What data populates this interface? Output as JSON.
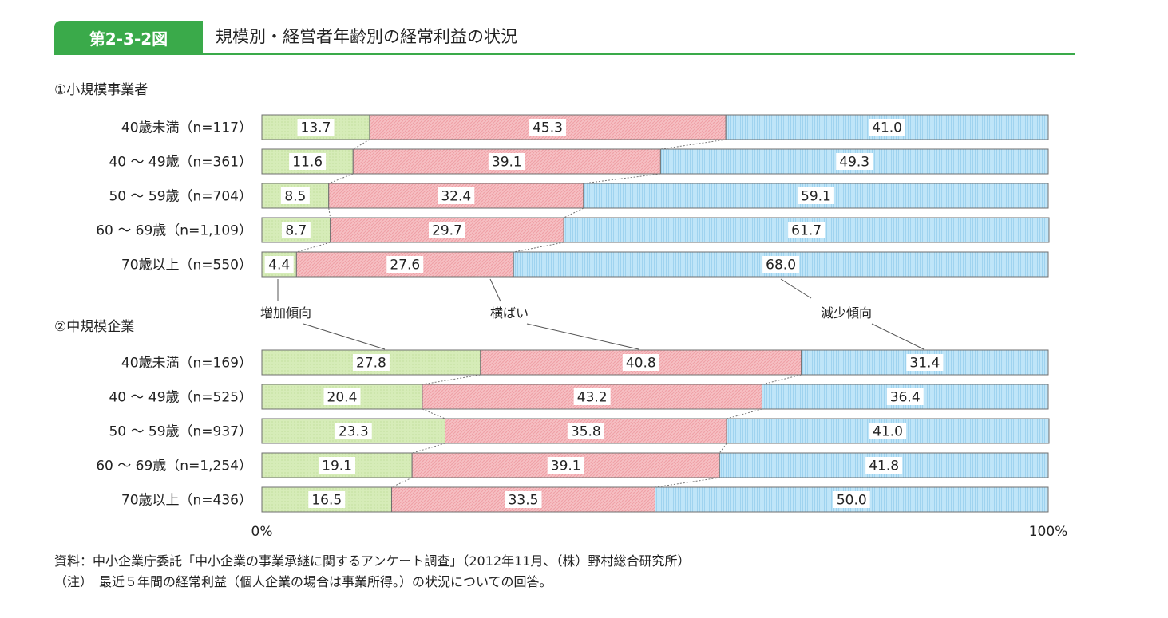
{
  "figure": {
    "badge": "第2-3-2図",
    "title": "規模別・経営者年齢別の経常利益の状況"
  },
  "chart_data": {
    "type": "bar",
    "stacked": true,
    "orientation": "horizontal",
    "xlim": [
      0,
      100
    ],
    "x_ticks": [
      "0%",
      "100%"
    ],
    "series_colors": [
      "#d4ebb5",
      "#f6b6ba",
      "#b7e0f5"
    ],
    "legend_labels": [
      "増加傾向",
      "横ばい",
      "減少傾向"
    ],
    "panels": [
      {
        "title": "①小規模事業者",
        "categories": [
          "40歳未満（n=117）",
          "40 ～ 49歳（n=361）",
          "50 ～ 59歳（n=704）",
          "60 ～ 69歳（n=1,109）",
          "70歳以上（n=550）"
        ],
        "series": [
          {
            "name": "増加傾向",
            "values": [
              13.7,
              11.6,
              8.5,
              8.7,
              4.4
            ]
          },
          {
            "name": "横ばい",
            "values": [
              45.3,
              39.1,
              32.4,
              29.7,
              27.6
            ]
          },
          {
            "name": "減少傾向",
            "values": [
              41.0,
              49.3,
              59.1,
              61.7,
              68.0
            ]
          }
        ]
      },
      {
        "title": "②中規模企業",
        "categories": [
          "40歳未満（n=169）",
          "40 ～ 49歳（n=525）",
          "50 ～ 59歳（n=937）",
          "60 ～ 69歳（n=1,254）",
          "70歳以上（n=436）"
        ],
        "series": [
          {
            "name": "増加傾向",
            "values": [
              27.8,
              20.4,
              23.3,
              19.1,
              16.5
            ]
          },
          {
            "name": "横ばい",
            "values": [
              40.8,
              43.2,
              35.8,
              39.1,
              33.5
            ]
          },
          {
            "name": "減少傾向",
            "values": [
              31.4,
              36.4,
              41.0,
              41.8,
              50.0
            ]
          }
        ]
      }
    ]
  },
  "footer": {
    "source": "資料：中小企業庁委託「中小企業の事業承継に関するアンケート調査」（2012年11月、（株）野村総合研究所）",
    "note": "（注）　最近５年間の経常利益（個人企業の場合は事業所得。）の状況についての回答。"
  }
}
